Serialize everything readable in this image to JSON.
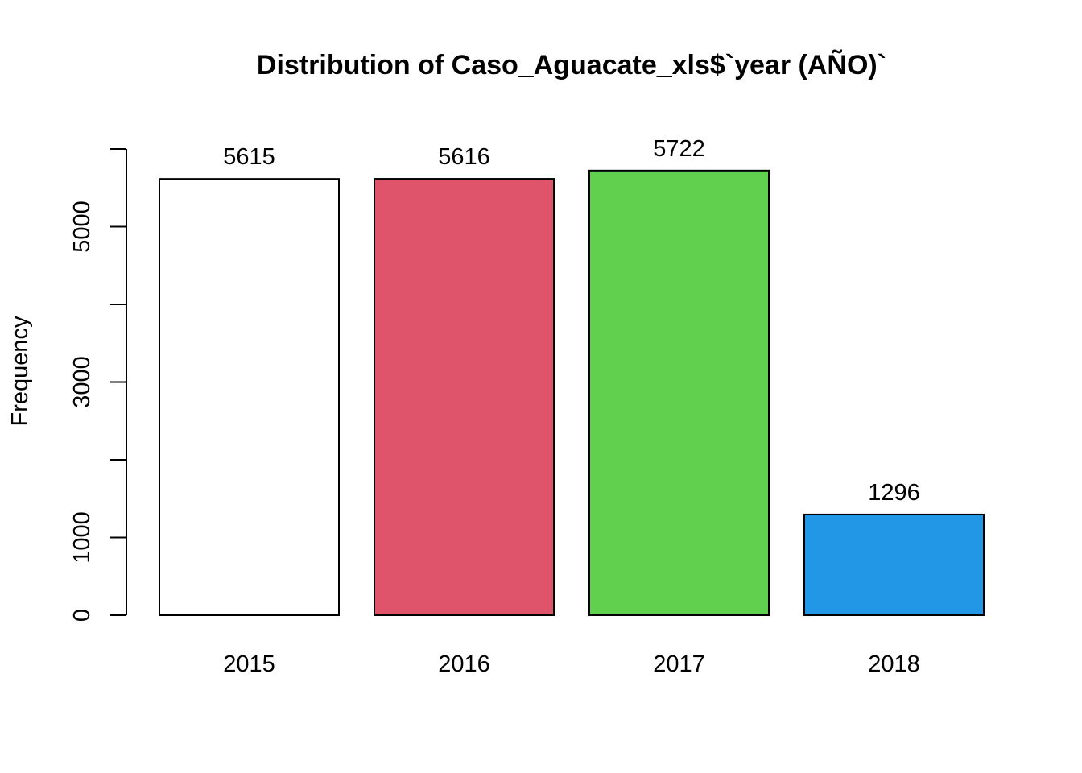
{
  "chart_data": {
    "type": "bar",
    "title": "Distribution of Caso_Aguacate_xls$`year (AÑO)`",
    "xlabel": "",
    "ylabel": "Frequency",
    "categories": [
      "2015",
      "2016",
      "2017",
      "2018"
    ],
    "values": [
      5615,
      5616,
      5722,
      1296
    ],
    "data_labels": [
      "5615",
      "5616",
      "5722",
      "1296"
    ],
    "colors": [
      "#FFFFFF",
      "#DF536B",
      "#61D04F",
      "#2297E6"
    ],
    "ylim": [
      0,
      6000
    ],
    "y_ticks": [
      0,
      1000,
      2000,
      3000,
      4000,
      5000,
      6000
    ],
    "y_tick_labels": [
      "0",
      "1000",
      "",
      "3000",
      "",
      "5000",
      ""
    ],
    "grid": false,
    "legend": "none"
  }
}
